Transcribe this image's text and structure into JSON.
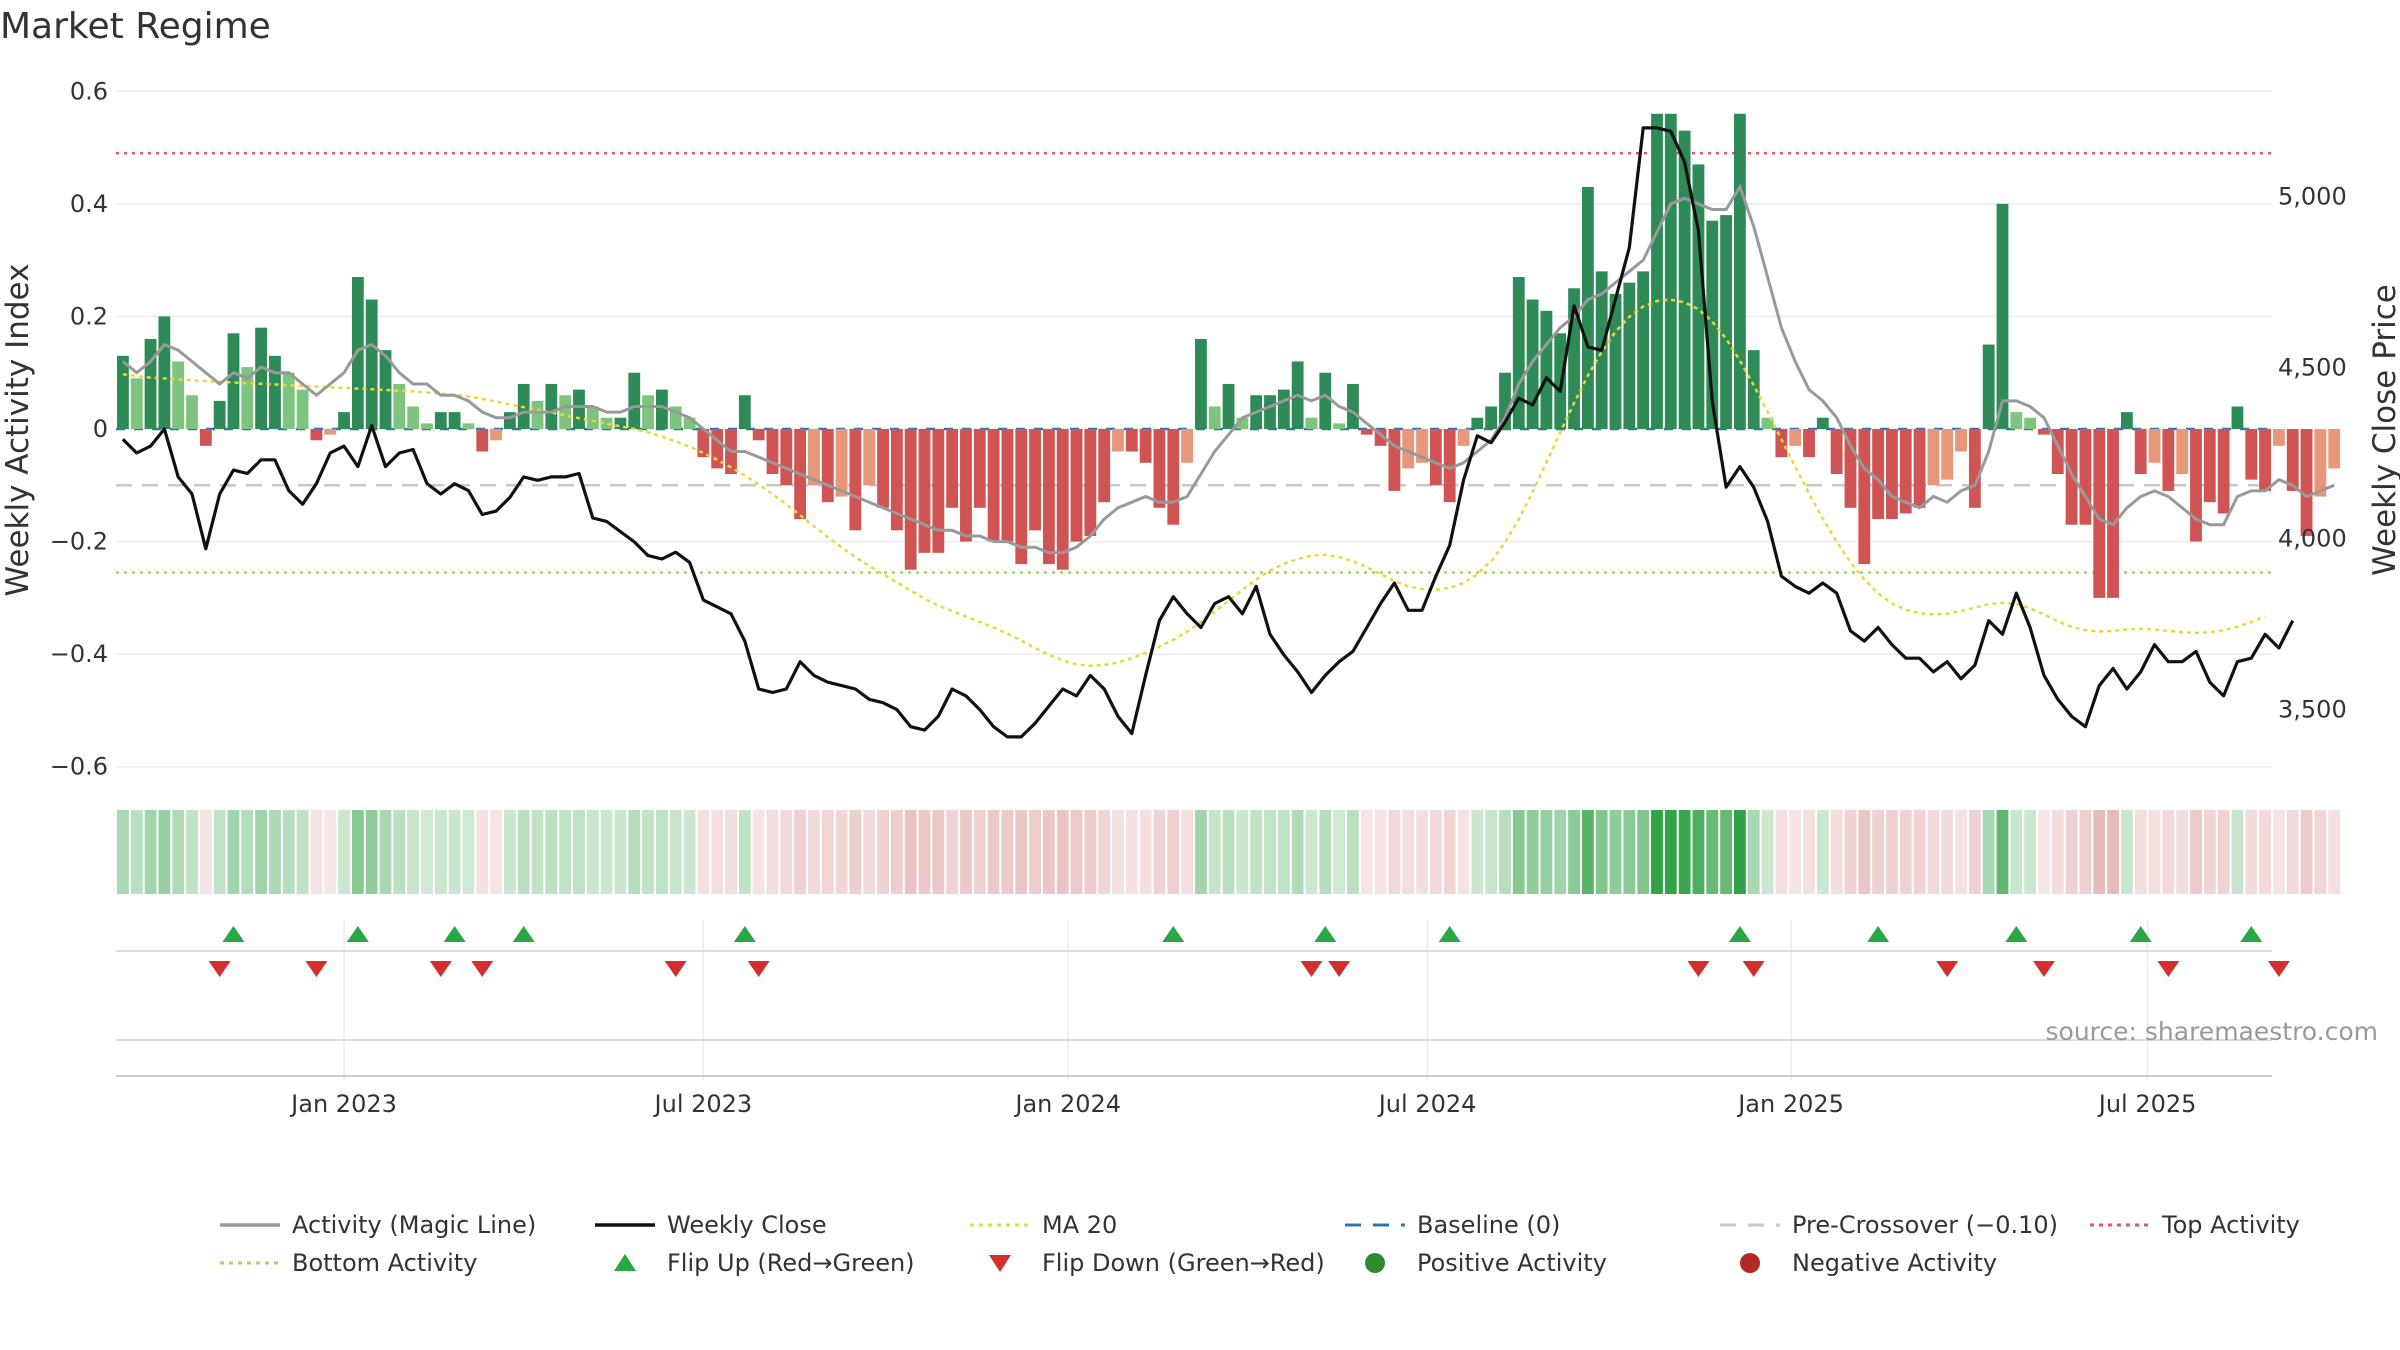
{
  "chart_data": {
    "type": "bar+line",
    "title": "Market Regime",
    "ylabel_left": "Weekly Activity Index",
    "ylabel_right": "Weekly Close Price",
    "source": "source: sharemaestro.com",
    "ylim_left": [
      -0.62,
      0.62
    ],
    "ylim_right": [
      3300,
      5340
    ],
    "yticks_left": [
      0.6,
      0.4,
      0.2,
      0,
      -0.2,
      -0.4,
      -0.6
    ],
    "yticks_left_labels": [
      "0.6",
      "0.4",
      "0.2",
      "0",
      "−0.2",
      "−0.4",
      "−0.6"
    ],
    "yticks_right": [
      5000,
      4500,
      4000,
      3500
    ],
    "yticks_right_labels": [
      "5,000",
      "4,500",
      "4,000",
      "3,500"
    ],
    "x_start": "2022-09-24",
    "x_end": "2025-09-06",
    "weeks": 156,
    "x_ticks": [
      {
        "label": "Jan 2023",
        "week": 16
      },
      {
        "label": "Jul 2023",
        "week": 42
      },
      {
        "label": "Jan 2024",
        "week": 68.4
      },
      {
        "label": "Jul 2024",
        "week": 94.4
      },
      {
        "label": "Jan 2025",
        "week": 120.7
      },
      {
        "label": "Jul 2025",
        "week": 146.5
      }
    ],
    "activity": [
      0.13,
      0.09,
      0.16,
      0.2,
      0.12,
      0.06,
      -0.03,
      0.05,
      0.17,
      0.11,
      0.18,
      0.13,
      0.1,
      0.07,
      -0.02,
      -0.01,
      0.03,
      0.27,
      0.23,
      0.14,
      0.08,
      0.04,
      0.01,
      0.03,
      0.03,
      0.01,
      -0.04,
      -0.02,
      0.03,
      0.08,
      0.05,
      0.08,
      0.06,
      0.07,
      0.04,
      0.02,
      0.02,
      0.1,
      0.06,
      0.07,
      0.04,
      0.02,
      -0.05,
      -0.07,
      -0.08,
      0.06,
      -0.02,
      -0.08,
      -0.1,
      -0.16,
      -0.1,
      -0.13,
      -0.12,
      -0.18,
      -0.1,
      -0.14,
      -0.18,
      -0.25,
      -0.22,
      -0.22,
      -0.14,
      -0.2,
      -0.14,
      -0.2,
      -0.2,
      -0.24,
      -0.18,
      -0.24,
      -0.25,
      -0.2,
      -0.19,
      -0.13,
      -0.04,
      -0.04,
      -0.06,
      -0.14,
      -0.17,
      -0.06,
      0.16,
      0.04,
      0.08,
      0.02,
      0.06,
      0.06,
      0.07,
      0.12,
      0.02,
      0.1,
      0.01,
      0.08,
      -0.01,
      -0.03,
      -0.11,
      -0.07,
      -0.06,
      -0.1,
      -0.13,
      -0.03,
      0.02,
      0.04,
      0.1,
      0.27,
      0.23,
      0.21,
      0.17,
      0.25,
      0.43,
      0.28,
      0.24,
      0.26,
      0.28,
      0.56,
      0.56,
      0.53,
      0.47,
      0.37,
      0.38,
      0.56,
      0.14,
      0.02,
      -0.05,
      -0.03,
      -0.05,
      0.02,
      -0.08,
      -0.14,
      -0.24,
      -0.16,
      -0.16,
      -0.15,
      -0.14,
      -0.1,
      -0.09,
      -0.04,
      -0.14,
      0.15,
      0.4,
      0.03,
      0.02,
      -0.01,
      -0.08,
      -0.17,
      -0.17,
      -0.3,
      -0.3,
      0.03,
      -0.08,
      -0.06,
      -0.11,
      -0.08,
      -0.2,
      -0.13,
      -0.15,
      0.04,
      -0.09,
      -0.11,
      -0.03,
      -0.11,
      -0.19,
      -0.12,
      -0.07
    ],
    "magic_line": [
      0.12,
      0.1,
      0.12,
      0.15,
      0.14,
      0.12,
      0.1,
      0.08,
      0.1,
      0.09,
      0.11,
      0.1,
      0.1,
      0.08,
      0.06,
      0.08,
      0.1,
      0.14,
      0.15,
      0.13,
      0.1,
      0.08,
      0.08,
      0.06,
      0.06,
      0.05,
      0.03,
      0.02,
      0.02,
      0.03,
      0.03,
      0.03,
      0.04,
      0.04,
      0.04,
      0.03,
      0.03,
      0.04,
      0.04,
      0.04,
      0.03,
      0.02,
      0.0,
      -0.02,
      -0.04,
      -0.04,
      -0.05,
      -0.06,
      -0.07,
      -0.08,
      -0.09,
      -0.1,
      -0.11,
      -0.12,
      -0.13,
      -0.14,
      -0.15,
      -0.16,
      -0.17,
      -0.18,
      -0.18,
      -0.19,
      -0.19,
      -0.2,
      -0.2,
      -0.21,
      -0.21,
      -0.22,
      -0.22,
      -0.21,
      -0.19,
      -0.16,
      -0.14,
      -0.13,
      -0.12,
      -0.13,
      -0.13,
      -0.12,
      -0.08,
      -0.04,
      -0.01,
      0.02,
      0.03,
      0.04,
      0.05,
      0.06,
      0.05,
      0.06,
      0.04,
      0.03,
      0.01,
      -0.01,
      -0.03,
      -0.04,
      -0.05,
      -0.06,
      -0.07,
      -0.06,
      -0.04,
      -0.02,
      0.02,
      0.08,
      0.12,
      0.15,
      0.18,
      0.2,
      0.23,
      0.24,
      0.26,
      0.28,
      0.3,
      0.35,
      0.4,
      0.41,
      0.4,
      0.39,
      0.39,
      0.43,
      0.36,
      0.27,
      0.18,
      0.12,
      0.07,
      0.05,
      0.02,
      -0.03,
      -0.07,
      -0.09,
      -0.12,
      -0.13,
      -0.14,
      -0.12,
      -0.13,
      -0.11,
      -0.1,
      -0.04,
      0.05,
      0.05,
      0.04,
      0.02,
      -0.03,
      -0.08,
      -0.12,
      -0.16,
      -0.17,
      -0.14,
      -0.12,
      -0.11,
      -0.12,
      -0.14,
      -0.16,
      -0.17,
      -0.17,
      -0.12,
      -0.11,
      -0.11,
      -0.09,
      -0.1,
      -0.12,
      -0.11,
      -0.1
    ],
    "weekly_close": [
      4290,
      4250,
      4270,
      4320,
      4180,
      4130,
      3970,
      4130,
      4200,
      4190,
      4230,
      4230,
      4140,
      4100,
      4160,
      4250,
      4270,
      4210,
      4330,
      4210,
      4250,
      4260,
      4160,
      4130,
      4160,
      4140,
      4070,
      4080,
      4120,
      4180,
      4170,
      4180,
      4180,
      4190,
      4060,
      4050,
      4020,
      3990,
      3950,
      3940,
      3960,
      3930,
      3820,
      3800,
      3780,
      3700,
      3560,
      3550,
      3560,
      3640,
      3600,
      3580,
      3570,
      3560,
      3530,
      3520,
      3500,
      3450,
      3440,
      3480,
      3560,
      3540,
      3500,
      3450,
      3420,
      3420,
      3460,
      3510,
      3560,
      3540,
      3600,
      3560,
      3480,
      3430,
      3600,
      3760,
      3830,
      3780,
      3740,
      3810,
      3830,
      3780,
      3860,
      3720,
      3660,
      3610,
      3550,
      3600,
      3640,
      3670,
      3740,
      3810,
      3870,
      3790,
      3790,
      3890,
      3980,
      4170,
      4300,
      4280,
      4340,
      4410,
      4390,
      4470,
      4430,
      4680,
      4560,
      4550,
      4700,
      4850,
      5200,
      5200,
      5190,
      5100,
      4900,
      4400,
      4150,
      4210,
      4150,
      4050,
      3890,
      3860,
      3840,
      3870,
      3840,
      3730,
      3700,
      3740,
      3690,
      3650,
      3650,
      3610,
      3640,
      3590,
      3630,
      3760,
      3720,
      3840,
      3740,
      3600,
      3530,
      3480,
      3450,
      3570,
      3620,
      3560,
      3610,
      3690,
      3640,
      3640,
      3670,
      3580,
      3540,
      3640,
      3650,
      3720,
      3680,
      3760
    ],
    "ma20": [
      4480,
      4475,
      4470,
      4468,
      4465,
      4463,
      4460,
      4458,
      4456,
      4454,
      4452,
      4450,
      4448,
      4446,
      4444,
      4442,
      4440,
      4438,
      4436,
      4434,
      4432,
      4430,
      4427,
      4424,
      4420,
      4415,
      4408,
      4400,
      4392,
      4384,
      4376,
      4368,
      4360,
      4352,
      4344,
      4336,
      4328,
      4320,
      4310,
      4298,
      4284,
      4268,
      4250,
      4230,
      4208,
      4184,
      4158,
      4130,
      4100,
      4068,
      4036,
      4004,
      3974,
      3946,
      3920,
      3896,
      3872,
      3848,
      3824,
      3804,
      3788,
      3772,
      3756,
      3740,
      3722,
      3702,
      3680,
      3660,
      3644,
      3632,
      3628,
      3630,
      3638,
      3650,
      3666,
      3684,
      3704,
      3728,
      3756,
      3786,
      3818,
      3850,
      3880,
      3906,
      3926,
      3940,
      3950,
      3952,
      3946,
      3934,
      3916,
      3896,
      3876,
      3860,
      3852,
      3850,
      3856,
      3870,
      3896,
      3934,
      3988,
      4056,
      4136,
      4222,
      4310,
      4396,
      4476,
      4546,
      4604,
      4648,
      4678,
      4694,
      4698,
      4690,
      4670,
      4634,
      4584,
      4520,
      4448,
      4370,
      4290,
      4210,
      4132,
      4058,
      3990,
      3930,
      3880,
      3840,
      3810,
      3792,
      3782,
      3778,
      3780,
      3788,
      3798,
      3808,
      3812,
      3808,
      3796,
      3778,
      3758,
      3742,
      3732,
      3728,
      3730,
      3734,
      3736,
      3734,
      3730,
      3726,
      3724,
      3726,
      3732,
      3742,
      3756,
      3772
    ],
    "baseline": 0,
    "pre_crossover": -0.1,
    "top_activity": 0.49,
    "bottom_activity": -0.255,
    "flip_up_weeks": [
      8,
      17,
      24,
      29,
      45,
      76,
      87,
      96,
      117,
      127,
      137,
      146,
      154
    ],
    "flip_down_weeks": [
      7,
      14,
      23,
      26,
      40,
      46,
      86,
      88,
      114,
      118,
      132,
      139,
      148,
      156
    ],
    "legend": [
      {
        "label": "Activity (Magic Line)",
        "style": "line",
        "color": "#999999"
      },
      {
        "label": "Weekly Close",
        "style": "line",
        "color": "#111111"
      },
      {
        "label": "MA 20",
        "style": "dotted",
        "color": "#ead83a"
      },
      {
        "label": "Baseline (0)",
        "style": "dashed",
        "color": "#2e74b5"
      },
      {
        "label": "Pre-Crossover (−0.10)",
        "style": "dashed",
        "color": "#c8c8c8"
      },
      {
        "label": "Top Activity",
        "style": "dotted",
        "color": "#e0526e"
      },
      {
        "label": "Bottom Activity",
        "style": "dotted",
        "color": "#9fd46a"
      },
      {
        "label": "Flip Up (Red→Green)",
        "style": "triangle-up",
        "color": "#28a745"
      },
      {
        "label": "Flip Down (Green→Red)",
        "style": "triangle-down",
        "color": "#d32f2f"
      },
      {
        "label": "Positive Activity",
        "style": "dot",
        "color": "#2e8b2e"
      },
      {
        "label": "Negative Activity",
        "style": "dot",
        "color": "#b02a2a"
      }
    ],
    "colors": {
      "pos_strong": "#2e8b57",
      "pos_light": "#7ec47e",
      "neg_strong": "#d05454",
      "neg_light": "#e8987a"
    }
  }
}
